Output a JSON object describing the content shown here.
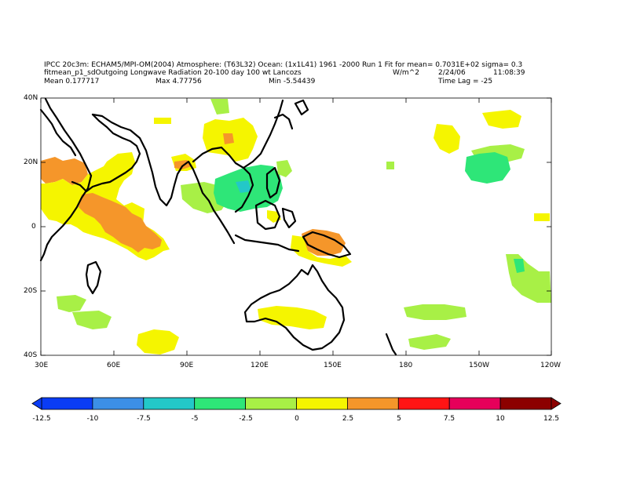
{
  "header": {
    "line1": "IPCC 20c3m: ECHAM5/MPI-OM(2004) Atmosphere: (T63L32) Ocean: (1x1L41) 1961 -2000 Run 1 Fit for mean= 0.7031E+02 sigma= 0.3",
    "line2_left": "fitmean_p1_sdOutgoing Longwave Radiation 20-100 day 100 wt Lancozs",
    "line2_units": "W/m^2",
    "line2_date": "2/24/06",
    "line2_time": "11:08:39",
    "mean": "Mean 0.177717",
    "max": "Max 4.77756",
    "min": "Min -5.54439",
    "timelag": "Time Lag = -25"
  },
  "map": {
    "lat_labels": [
      "40N",
      "20N",
      "0",
      "20S",
      "40S"
    ],
    "lon_labels": [
      "30E",
      "60E",
      "90E",
      "120E",
      "150E",
      "180",
      "150W",
      "120W"
    ],
    "lon_range": [
      30,
      240
    ],
    "lat_range": [
      -40,
      40
    ]
  },
  "colorbar": {
    "labels": [
      "-12.5",
      "-10",
      "-7.5",
      "-5",
      "-2.5",
      "0",
      "2.5",
      "5",
      "7.5",
      "10",
      "12.5"
    ],
    "colors": [
      "#0a3cf5",
      "#3c8fe6",
      "#23c8c8",
      "#2ee678",
      "#a8f046",
      "#f5f500",
      "#f5962a",
      "#ff1414",
      "#e6005a",
      "#8c0000"
    ],
    "range": [
      -12.5,
      12.5
    ]
  },
  "colors": {
    "coast": "#000000",
    "orange": "#f5962a",
    "yellow": "#f5f500",
    "lightgreen": "#a8f046",
    "green": "#2ee678",
    "cyan": "#23c8c8"
  }
}
